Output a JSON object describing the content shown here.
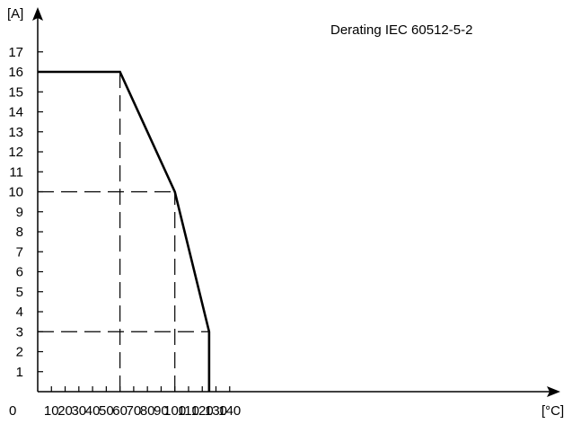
{
  "chart_data": {
    "type": "line",
    "title": "Derating IEC 60512-5-2",
    "xlabel": "[°C]",
    "ylabel": "[A]",
    "xlim": [
      0,
      150
    ],
    "ylim": [
      0,
      18
    ],
    "x_ticks": [
      10,
      20,
      30,
      40,
      50,
      60,
      70,
      80,
      90,
      100,
      110,
      120,
      130,
      140
    ],
    "y_ticks": [
      1,
      2,
      3,
      4,
      5,
      6,
      7,
      8,
      9,
      10,
      11,
      12,
      13,
      14,
      15,
      16,
      17
    ],
    "origin_label": "0",
    "grid": false,
    "legend": "none",
    "series": [
      {
        "x": [
          0,
          60,
          100,
          125,
          125
        ],
        "y": [
          16,
          16,
          10,
          3,
          0
        ]
      }
    ],
    "reference_lines": [
      {
        "orientation": "vertical",
        "x": 60,
        "y_from": 0,
        "y_to": 16
      },
      {
        "orientation": "vertical",
        "x": 100,
        "y_from": 0,
        "y_to": 10
      },
      {
        "orientation": "horizontal",
        "y": 10,
        "x_from": 0,
        "x_to": 100
      },
      {
        "orientation": "horizontal",
        "y": 3,
        "x_from": 0,
        "x_to": 125
      }
    ],
    "colors": {
      "line": "#000000",
      "axis": "#000000"
    }
  }
}
